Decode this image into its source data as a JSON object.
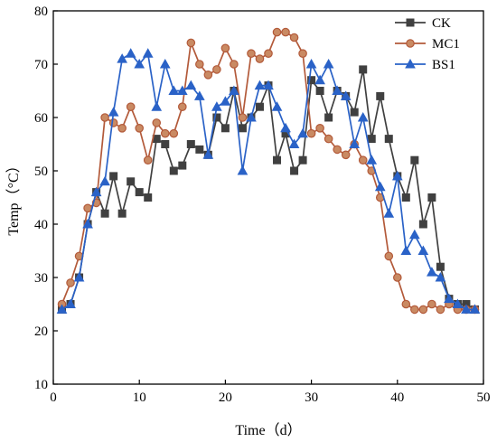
{
  "chart_data": {
    "type": "line",
    "xlabel": "Time（d）",
    "ylabel": "Temp（°C）",
    "xlim": [
      0,
      50
    ],
    "ylim": [
      10,
      80
    ],
    "xticks": [
      0,
      10,
      20,
      30,
      40,
      50
    ],
    "yticks": [
      10,
      20,
      30,
      40,
      50,
      60,
      70,
      80
    ],
    "xtick_labels": [
      "0",
      "10",
      "20",
      "30",
      "40",
      "50"
    ],
    "ytick_labels": [
      "10",
      "20",
      "30",
      "40",
      "50",
      "60",
      "70",
      "80"
    ],
    "grid": false,
    "legend_position": "top-right",
    "series": [
      {
        "name": "CK",
        "color": "#404040",
        "marker": "square",
        "x": [
          1,
          2,
          3,
          4,
          5,
          6,
          7,
          8,
          9,
          10,
          11,
          12,
          13,
          14,
          15,
          16,
          17,
          18,
          19,
          20,
          21,
          22,
          23,
          24,
          25,
          26,
          27,
          28,
          29,
          30,
          31,
          32,
          33,
          34,
          35,
          36,
          37,
          38,
          39,
          40,
          41,
          42,
          43,
          44,
          45,
          46,
          47,
          48,
          49
        ],
        "values": [
          24,
          25,
          30,
          40,
          46,
          42,
          49,
          42,
          48,
          46,
          45,
          56,
          55,
          50,
          51,
          55,
          54,
          53,
          60,
          58,
          65,
          58,
          60,
          62,
          66,
          52,
          57,
          50,
          52,
          67,
          65,
          60,
          65,
          64,
          61,
          69,
          56,
          64,
          56,
          49,
          45,
          52,
          40,
          45,
          32,
          26,
          25,
          25,
          24
        ]
      },
      {
        "name": "MC1",
        "color": "#b35a3a",
        "marker": "circle",
        "x": [
          1,
          2,
          3,
          4,
          5,
          6,
          7,
          8,
          9,
          10,
          11,
          12,
          13,
          14,
          15,
          16,
          17,
          18,
          19,
          20,
          21,
          22,
          23,
          24,
          25,
          26,
          27,
          28,
          29,
          30,
          31,
          32,
          33,
          34,
          35,
          36,
          37,
          38,
          39,
          40,
          41,
          42,
          43,
          44,
          45,
          46,
          47,
          48,
          49
        ],
        "values": [
          25,
          29,
          34,
          43,
          44,
          60,
          59,
          58,
          62,
          58,
          52,
          59,
          57,
          57,
          62,
          74,
          70,
          68,
          69,
          73,
          70,
          60,
          72,
          71,
          72,
          76,
          76,
          75,
          72,
          57,
          58,
          56,
          54,
          53,
          55,
          52,
          50,
          45,
          34,
          30,
          25,
          24,
          24,
          25,
          24,
          25,
          24,
          24,
          24
        ]
      },
      {
        "name": "BS1",
        "color": "#2a62c7",
        "marker": "triangle",
        "x": [
          1,
          2,
          3,
          4,
          5,
          6,
          7,
          8,
          9,
          10,
          11,
          12,
          13,
          14,
          15,
          16,
          17,
          18,
          19,
          20,
          21,
          22,
          23,
          24,
          25,
          26,
          27,
          28,
          29,
          30,
          31,
          32,
          33,
          34,
          35,
          36,
          37,
          38,
          39,
          40,
          41,
          42,
          43,
          44,
          45,
          46,
          47,
          48,
          49
        ],
        "values": [
          24,
          25,
          30,
          40,
          46,
          48,
          61,
          71,
          72,
          70,
          72,
          62,
          70,
          65,
          65,
          66,
          64,
          53,
          62,
          63,
          65,
          50,
          60,
          66,
          66,
          62,
          58,
          55,
          57,
          70,
          67,
          70,
          65,
          64,
          55,
          60,
          52,
          47,
          42,
          49,
          35,
          38,
          35,
          31,
          30,
          26,
          25,
          24,
          24
        ]
      }
    ]
  }
}
